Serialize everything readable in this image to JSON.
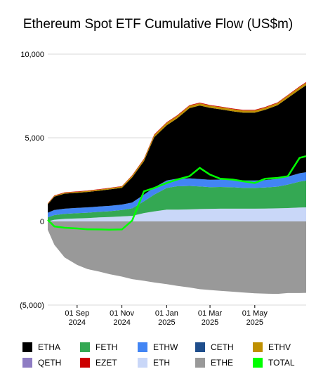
{
  "chart_data": {
    "type": "area",
    "title": "Ethereum Spot ETF Cumulative Flow (US$m)",
    "ylim": [
      -5000,
      10000
    ],
    "yticks": [
      -5000,
      0,
      5000,
      10000
    ],
    "ytick_labels": [
      "(5,000)",
      "0",
      "5,000",
      "10,000"
    ],
    "xticks": [
      {
        "date": "2024-09-01",
        "line1": "01 Sep",
        "line2": "2024"
      },
      {
        "date": "2024-11-01",
        "line1": "01 Nov",
        "line2": "2024"
      },
      {
        "date": "2025-01-01",
        "line1": "01 Jan",
        "line2": "2025"
      },
      {
        "date": "2025-03-01",
        "line1": "01 Mar",
        "line2": "2025"
      },
      {
        "date": "2025-05-01",
        "line1": "01 May",
        "line2": "2025"
      }
    ],
    "x": [
      "2024-07-23",
      "2024-08-01",
      "2024-08-15",
      "2024-09-01",
      "2024-09-15",
      "2024-10-01",
      "2024-10-15",
      "2024-11-01",
      "2024-11-15",
      "2024-12-01",
      "2024-12-15",
      "2025-01-01",
      "2025-01-15",
      "2025-02-01",
      "2025-02-15",
      "2025-03-01",
      "2025-03-15",
      "2025-04-01",
      "2025-04-15",
      "2025-05-01",
      "2025-05-15",
      "2025-06-01",
      "2025-06-15",
      "2025-07-01",
      "2025-07-10"
    ],
    "grid": true,
    "stacked": true,
    "series": [
      {
        "name": "ETHE",
        "color": "#999999",
        "values": [
          -500,
          -1400,
          -2150,
          -2600,
          -2850,
          -3000,
          -3150,
          -3300,
          -3450,
          -3550,
          -3650,
          -3750,
          -3850,
          -3950,
          -4050,
          -4100,
          -4150,
          -4200,
          -4250,
          -4300,
          -4320,
          -4330,
          -4280,
          -4280,
          -4270
        ]
      },
      {
        "name": "ETH",
        "color": "#c9d7f8",
        "values": [
          0,
          100,
          150,
          180,
          200,
          240,
          260,
          300,
          330,
          500,
          600,
          700,
          700,
          720,
          740,
          750,
          760,
          760,
          760,
          760,
          770,
          780,
          800,
          830,
          840
        ]
      },
      {
        "name": "FETH",
        "color": "#34a853",
        "values": [
          240,
          280,
          300,
          310,
          320,
          330,
          350,
          380,
          450,
          700,
          1000,
          1300,
          1400,
          1400,
          1350,
          1300,
          1300,
          1280,
          1250,
          1250,
          1260,
          1300,
          1400,
          1550,
          1600
        ]
      },
      {
        "name": "ETHW",
        "color": "#4285f4",
        "values": [
          280,
          300,
          310,
          320,
          320,
          320,
          320,
          330,
          350,
          400,
          430,
          450,
          450,
          450,
          440,
          440,
          440,
          440,
          440,
          440,
          440,
          460,
          480,
          500,
          500
        ]
      },
      {
        "name": "ETHA",
        "color": "#000000",
        "values": [
          500,
          800,
          900,
          900,
          920,
          950,
          980,
          1000,
          1500,
          2000,
          3000,
          3300,
          3600,
          4200,
          4400,
          4300,
          4200,
          4100,
          4050,
          4050,
          4200,
          4400,
          4700,
          5000,
          5200
        ]
      },
      {
        "name": "CETH",
        "color": "#1f4e8c",
        "values": [
          0,
          0,
          0,
          0,
          0,
          0,
          0,
          0,
          0,
          0,
          0,
          0,
          0,
          0,
          0,
          0,
          0,
          0,
          0,
          0,
          0,
          0,
          0,
          0,
          0
        ]
      },
      {
        "name": "ETHV",
        "color": "#bf9000",
        "values": [
          40,
          50,
          55,
          60,
          60,
          65,
          70,
          80,
          100,
          120,
          130,
          140,
          140,
          140,
          130,
          130,
          130,
          130,
          130,
          130,
          130,
          135,
          140,
          150,
          150
        ]
      },
      {
        "name": "QETH",
        "color": "#8e7cc3",
        "values": [
          0,
          0,
          0,
          0,
          0,
          0,
          0,
          0,
          0,
          0,
          0,
          0,
          0,
          0,
          0,
          0,
          0,
          0,
          0,
          0,
          0,
          0,
          0,
          0,
          0
        ]
      },
      {
        "name": "EZET",
        "color": "#cc0000",
        "values": [
          20,
          25,
          25,
          25,
          25,
          25,
          25,
          25,
          30,
          35,
          40,
          40,
          40,
          40,
          40,
          40,
          40,
          40,
          40,
          40,
          40,
          40,
          40,
          40,
          40
        ]
      }
    ],
    "total": {
      "name": "TOTAL",
      "color": "#00ff00",
      "values": [
        100,
        -300,
        -380,
        -420,
        -470,
        -480,
        -490,
        -480,
        50,
        1800,
        2000,
        2300,
        2500,
        2700,
        3200,
        2800,
        2550,
        2500,
        2400,
        2300,
        2550,
        2600,
        2700,
        3800,
        3900
      ]
    },
    "legend": {
      "position": "bottom",
      "rows": [
        [
          {
            "name": "ETHA",
            "color": "#000000"
          },
          {
            "name": "FETH",
            "color": "#34a853"
          },
          {
            "name": "ETHW",
            "color": "#4285f4"
          },
          {
            "name": "CETH",
            "color": "#1f4e8c"
          },
          {
            "name": "ETHV",
            "color": "#bf9000"
          }
        ],
        [
          {
            "name": "QETH",
            "color": "#8e7cc3"
          },
          {
            "name": "EZET",
            "color": "#cc0000"
          },
          {
            "name": "ETH",
            "color": "#c9d7f8"
          },
          {
            "name": "ETHE",
            "color": "#999999"
          },
          {
            "name": "TOTAL",
            "color": "#00ff00"
          }
        ]
      ]
    }
  }
}
